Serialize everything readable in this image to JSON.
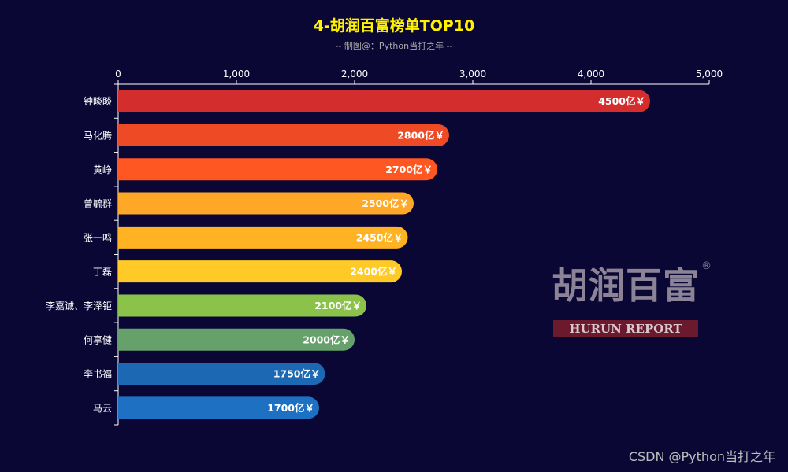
{
  "chart_data": {
    "type": "bar",
    "orientation": "horizontal",
    "title": "4-胡润百富榜单TOP10",
    "subtitle": "-- 制图@：Python当打之年 --",
    "categories": [
      "钟睒睒",
      "马化腾",
      "黄峥",
      "曾毓群",
      "张一鸣",
      "丁磊",
      "李嘉诚、李泽钜",
      "何享健",
      "李书福",
      "马云"
    ],
    "values": [
      4500,
      2800,
      2700,
      2500,
      2450,
      2400,
      2100,
      2000,
      1750,
      1700
    ],
    "value_suffix": "亿￥",
    "bar_colors": [
      "#d42d2d",
      "#ef4a26",
      "#ff5722",
      "#ffa726",
      "#ffb322",
      "#ffca28",
      "#8bc34a",
      "#66a06a",
      "#1d68b3",
      "#1e70c2"
    ],
    "x_ticks": [
      "0",
      "1,000",
      "2,000",
      "3,000",
      "4,000",
      "5,000"
    ],
    "xlim": [
      0,
      5000
    ],
    "x_axis_position": "top",
    "grid": false,
    "legend": "none"
  },
  "logo": {
    "cn": "胡润百富",
    "en": "HURUN REPORT",
    "reg": "®"
  },
  "watermark": "CSDN @Python当打之年"
}
